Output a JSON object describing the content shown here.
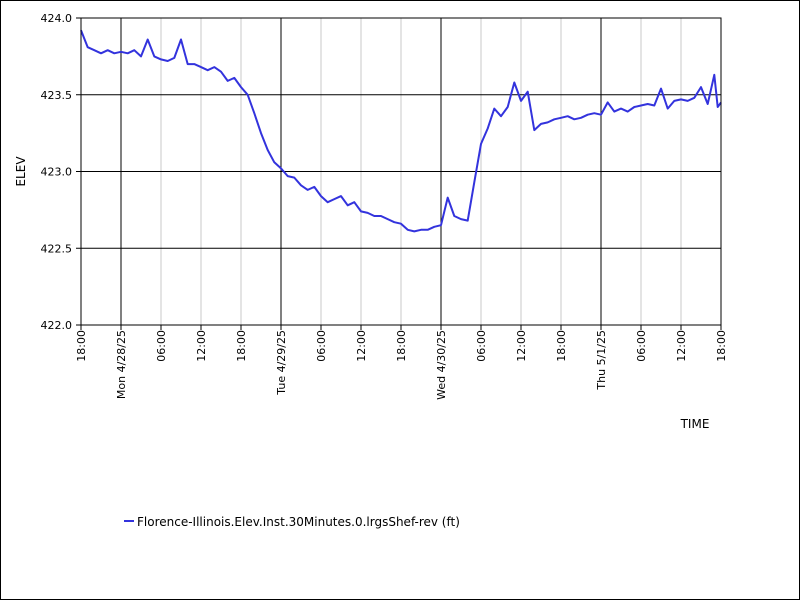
{
  "chart_data": {
    "type": "line",
    "title": "",
    "xlabel": "TIME",
    "ylabel": "ELEV",
    "ylim": [
      422.0,
      424.0
    ],
    "y_ticks": [
      "422.0",
      "422.5",
      "423.0",
      "423.5",
      "424.0"
    ],
    "x_range": [
      "2025-04-27 18:00",
      "2025-05-01 18:00"
    ],
    "x_ticks": [
      {
        "time": "2025-04-27 18:00",
        "label": "18:00",
        "major": false
      },
      {
        "time": "2025-04-28 00:00",
        "label": "Mon 4/28/25",
        "major": true
      },
      {
        "time": "2025-04-28 06:00",
        "label": "06:00",
        "major": false
      },
      {
        "time": "2025-04-28 12:00",
        "label": "12:00",
        "major": false
      },
      {
        "time": "2025-04-28 18:00",
        "label": "18:00",
        "major": false
      },
      {
        "time": "2025-04-29 00:00",
        "label": "Tue 4/29/25",
        "major": true
      },
      {
        "time": "2025-04-29 06:00",
        "label": "06:00",
        "major": false
      },
      {
        "time": "2025-04-29 12:00",
        "label": "12:00",
        "major": false
      },
      {
        "time": "2025-04-29 18:00",
        "label": "18:00",
        "major": false
      },
      {
        "time": "2025-04-30 00:00",
        "label": "Wed 4/30/25",
        "major": true
      },
      {
        "time": "2025-04-30 06:00",
        "label": "06:00",
        "major": false
      },
      {
        "time": "2025-04-30 12:00",
        "label": "12:00",
        "major": false
      },
      {
        "time": "2025-04-30 18:00",
        "label": "18:00",
        "major": false
      },
      {
        "time": "2025-05-01 00:00",
        "label": "Thu 5/1/25",
        "major": true
      },
      {
        "time": "2025-05-01 06:00",
        "label": "06:00",
        "major": false
      },
      {
        "time": "2025-05-01 12:00",
        "label": "12:00",
        "major": false
      },
      {
        "time": "2025-05-01 18:00",
        "label": "18:00",
        "major": false
      }
    ],
    "grid": true,
    "legend_position": "bottom-left",
    "series": [
      {
        "name": "Florence-Illinois.Elev.Inst.30Minutes.0.lrgsShef-rev (ft)",
        "color": "#3333dd",
        "points": [
          [
            "2025-04-27 18:00",
            423.92
          ],
          [
            "2025-04-27 19:00",
            423.81
          ],
          [
            "2025-04-27 20:00",
            423.79
          ],
          [
            "2025-04-27 21:00",
            423.77
          ],
          [
            "2025-04-27 22:00",
            423.79
          ],
          [
            "2025-04-27 23:00",
            423.77
          ],
          [
            "2025-04-28 00:00",
            423.78
          ],
          [
            "2025-04-28 01:00",
            423.77
          ],
          [
            "2025-04-28 02:00",
            423.79
          ],
          [
            "2025-04-28 03:00",
            423.75
          ],
          [
            "2025-04-28 04:00",
            423.86
          ],
          [
            "2025-04-28 05:00",
            423.75
          ],
          [
            "2025-04-28 06:00",
            423.73
          ],
          [
            "2025-04-28 07:00",
            423.72
          ],
          [
            "2025-04-28 08:00",
            423.74
          ],
          [
            "2025-04-28 09:00",
            423.86
          ],
          [
            "2025-04-28 10:00",
            423.7
          ],
          [
            "2025-04-28 11:00",
            423.7
          ],
          [
            "2025-04-28 12:00",
            423.68
          ],
          [
            "2025-04-28 13:00",
            423.66
          ],
          [
            "2025-04-28 14:00",
            423.68
          ],
          [
            "2025-04-28 15:00",
            423.65
          ],
          [
            "2025-04-28 16:00",
            423.59
          ],
          [
            "2025-04-28 17:00",
            423.61
          ],
          [
            "2025-04-28 18:00",
            423.55
          ],
          [
            "2025-04-28 19:00",
            423.5
          ],
          [
            "2025-04-28 20:00",
            423.38
          ],
          [
            "2025-04-28 21:00",
            423.25
          ],
          [
            "2025-04-28 22:00",
            423.14
          ],
          [
            "2025-04-28 23:00",
            423.06
          ],
          [
            "2025-04-29 00:00",
            423.02
          ],
          [
            "2025-04-29 01:00",
            422.97
          ],
          [
            "2025-04-29 02:00",
            422.96
          ],
          [
            "2025-04-29 03:00",
            422.91
          ],
          [
            "2025-04-29 04:00",
            422.88
          ],
          [
            "2025-04-29 05:00",
            422.9
          ],
          [
            "2025-04-29 06:00",
            422.84
          ],
          [
            "2025-04-29 07:00",
            422.8
          ],
          [
            "2025-04-29 08:00",
            422.82
          ],
          [
            "2025-04-29 09:00",
            422.84
          ],
          [
            "2025-04-29 10:00",
            422.78
          ],
          [
            "2025-04-29 11:00",
            422.8
          ],
          [
            "2025-04-29 12:00",
            422.74
          ],
          [
            "2025-04-29 13:00",
            422.73
          ],
          [
            "2025-04-29 14:00",
            422.71
          ],
          [
            "2025-04-29 15:00",
            422.71
          ],
          [
            "2025-04-29 16:00",
            422.69
          ],
          [
            "2025-04-29 17:00",
            422.67
          ],
          [
            "2025-04-29 18:00",
            422.66
          ],
          [
            "2025-04-29 19:00",
            422.62
          ],
          [
            "2025-04-29 20:00",
            422.61
          ],
          [
            "2025-04-29 21:00",
            422.62
          ],
          [
            "2025-04-29 22:00",
            422.62
          ],
          [
            "2025-04-29 23:00",
            422.64
          ],
          [
            "2025-04-30 00:00",
            422.65
          ],
          [
            "2025-04-30 01:00",
            422.83
          ],
          [
            "2025-04-30 02:00",
            422.71
          ],
          [
            "2025-04-30 03:00",
            422.69
          ],
          [
            "2025-04-30 04:00",
            422.68
          ],
          [
            "2025-04-30 05:00",
            422.93
          ],
          [
            "2025-04-30 06:00",
            423.18
          ],
          [
            "2025-04-30 07:00",
            423.28
          ],
          [
            "2025-04-30 08:00",
            423.41
          ],
          [
            "2025-04-30 09:00",
            423.36
          ],
          [
            "2025-04-30 10:00",
            423.42
          ],
          [
            "2025-04-30 11:00",
            423.58
          ],
          [
            "2025-04-30 12:00",
            423.46
          ],
          [
            "2025-04-30 13:00",
            423.52
          ],
          [
            "2025-04-30 14:00",
            423.27
          ],
          [
            "2025-04-30 15:00",
            423.31
          ],
          [
            "2025-04-30 16:00",
            423.32
          ],
          [
            "2025-04-30 17:00",
            423.34
          ],
          [
            "2025-04-30 18:00",
            423.35
          ],
          [
            "2025-04-30 19:00",
            423.36
          ],
          [
            "2025-04-30 20:00",
            423.34
          ],
          [
            "2025-04-30 21:00",
            423.35
          ],
          [
            "2025-04-30 22:00",
            423.37
          ],
          [
            "2025-04-30 23:00",
            423.38
          ],
          [
            "2025-05-01 00:00",
            423.37
          ],
          [
            "2025-05-01 01:00",
            423.45
          ],
          [
            "2025-05-01 02:00",
            423.39
          ],
          [
            "2025-05-01 03:00",
            423.41
          ],
          [
            "2025-05-01 04:00",
            423.39
          ],
          [
            "2025-05-01 05:00",
            423.42
          ],
          [
            "2025-05-01 06:00",
            423.43
          ],
          [
            "2025-05-01 07:00",
            423.44
          ],
          [
            "2025-05-01 08:00",
            423.43
          ],
          [
            "2025-05-01 09:00",
            423.54
          ],
          [
            "2025-05-01 10:00",
            423.41
          ],
          [
            "2025-05-01 11:00",
            423.46
          ],
          [
            "2025-05-01 12:00",
            423.47
          ],
          [
            "2025-05-01 13:00",
            423.46
          ],
          [
            "2025-05-01 14:00",
            423.48
          ],
          [
            "2025-05-01 15:00",
            423.55
          ],
          [
            "2025-05-01 16:00",
            423.44
          ],
          [
            "2025-05-01 17:00",
            423.63
          ],
          [
            "2025-05-01 17:30",
            423.42
          ],
          [
            "2025-05-01 18:00",
            423.45
          ]
        ]
      }
    ]
  }
}
